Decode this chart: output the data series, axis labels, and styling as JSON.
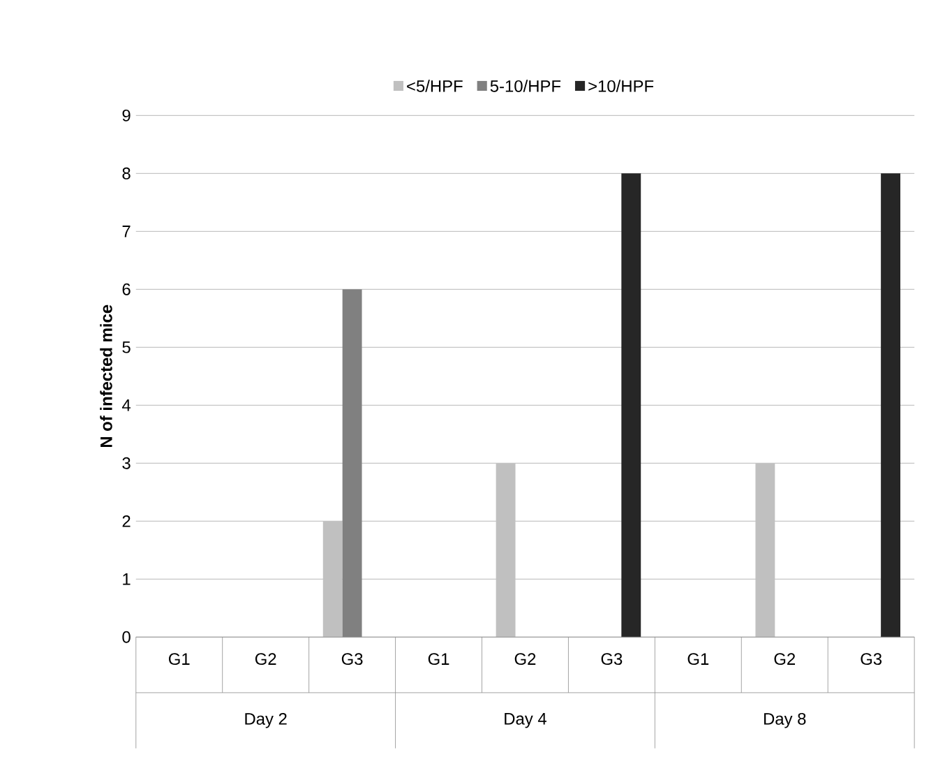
{
  "chart_data": {
    "type": "bar",
    "ylabel": "N of infected mice",
    "categories": [
      "G1",
      "G2",
      "G3",
      "G1",
      "G2",
      "G3",
      "G1",
      "G2",
      "G3"
    ],
    "series": [
      {
        "name": "<5/HPF",
        "color": "#c0c0c0",
        "values": [
          0,
          0,
          2,
          0,
          3,
          0,
          0,
          3,
          0
        ]
      },
      {
        "name": "5-10/HPF",
        "color": "#808080",
        "values": [
          0,
          0,
          6,
          0,
          0,
          0,
          0,
          0,
          0
        ]
      },
      {
        "name": ">10/HPF",
        "color": "#262626",
        "values": [
          0,
          0,
          0,
          0,
          0,
          8,
          0,
          0,
          8
        ]
      }
    ],
    "annotations": [
      "Day 2",
      "Day 4",
      "Day 8"
    ],
    "ylim": [
      0,
      9
    ],
    "yticks": [
      0,
      1,
      2,
      3,
      4,
      5,
      6,
      7,
      8,
      9
    ],
    "grid": "y",
    "legend": "top"
  }
}
